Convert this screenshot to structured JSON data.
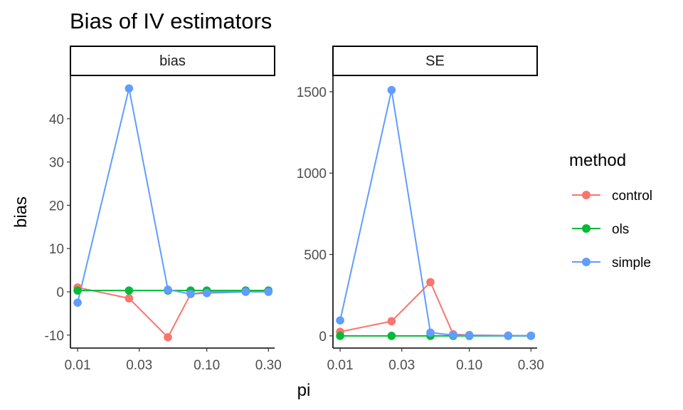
{
  "title": "Bias of IV estimators",
  "xlabel": "pi",
  "ylabel": "bias",
  "legend": {
    "title": "method",
    "entries": [
      {
        "label": "control",
        "color": "#F8766D"
      },
      {
        "label": "ols",
        "color": "#00BA38"
      },
      {
        "label": "simple",
        "color": "#619CFF"
      }
    ]
  },
  "chart_data": {
    "type": "line",
    "title": "Bias of IV estimators",
    "xlabel": "pi",
    "ylabel": "bias",
    "x_scale": "log10",
    "x_ticks": [
      0.01,
      0.03,
      0.1,
      0.3
    ],
    "x_tick_labels": [
      "0.01",
      "0.03",
      "0.10",
      "0.30"
    ],
    "x": [
      0.01,
      0.025,
      0.05,
      0.075,
      0.1,
      0.2,
      0.3
    ],
    "legend_title": "method",
    "legend_position": "right",
    "grid": false,
    "facets": [
      {
        "name": "bias",
        "ylim": [
          -13,
          50
        ],
        "y_ticks": [
          -10,
          0,
          10,
          20,
          30,
          40
        ],
        "y_tick_labels": [
          "-10",
          "0",
          "10",
          "20",
          "30",
          "40"
        ],
        "series": [
          {
            "name": "control",
            "color": "#F8766D",
            "values": [
              1.0,
              -1.5,
              -10.5,
              -0.5,
              0.0,
              0.2,
              0.2
            ]
          },
          {
            "name": "ols",
            "color": "#00BA38",
            "values": [
              0.3,
              0.3,
              0.3,
              0.3,
              0.3,
              0.3,
              0.3
            ]
          },
          {
            "name": "simple",
            "color": "#619CFF",
            "values": [
              -2.5,
              47.0,
              0.5,
              -0.5,
              -0.3,
              0.0,
              0.0
            ]
          }
        ]
      },
      {
        "name": "SE",
        "ylim": [
          -75,
          1600
        ],
        "y_ticks": [
          0,
          500,
          1000,
          1500
        ],
        "y_tick_labels": [
          "0",
          "500",
          "1000",
          "1500"
        ],
        "series": [
          {
            "name": "control",
            "color": "#F8766D",
            "values": [
              25,
              90,
              330,
              10,
              5,
              2,
              1
            ]
          },
          {
            "name": "ols",
            "color": "#00BA38",
            "values": [
              0,
              0,
              0,
              0,
              0,
              0,
              0
            ]
          },
          {
            "name": "simple",
            "color": "#619CFF",
            "values": [
              95,
              1510,
              20,
              5,
              3,
              1,
              1
            ]
          }
        ]
      }
    ]
  }
}
